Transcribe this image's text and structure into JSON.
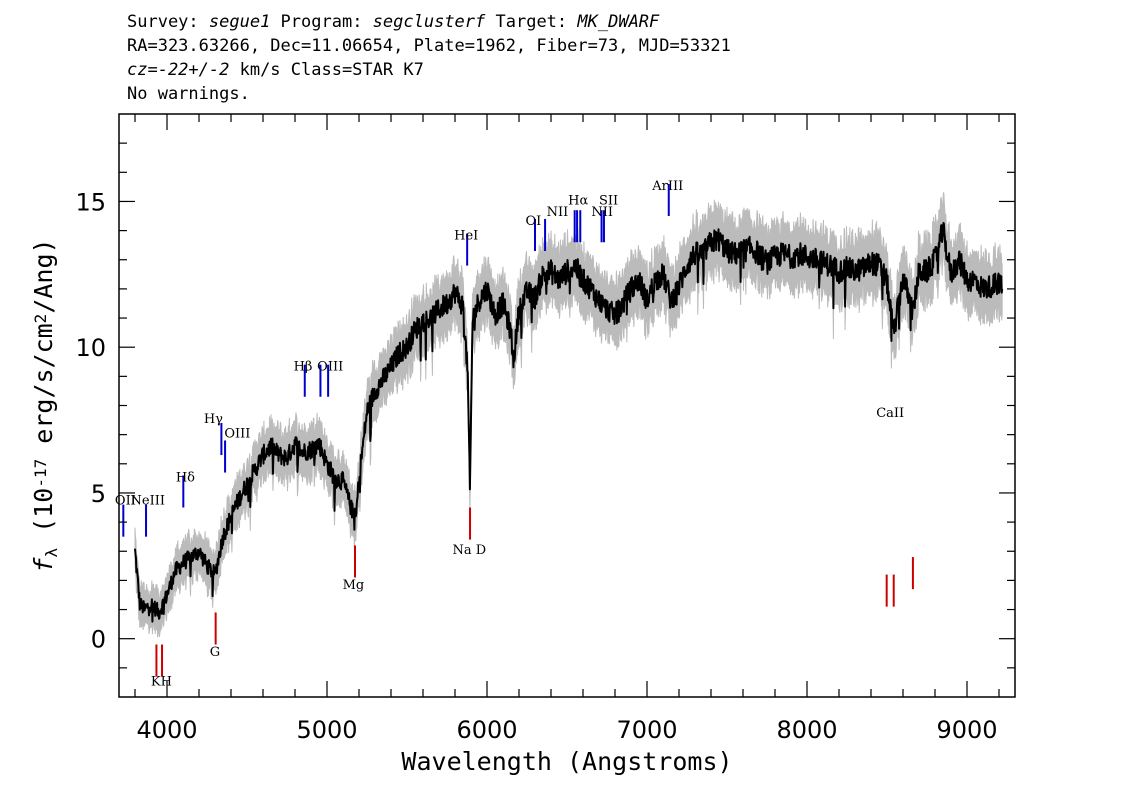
{
  "header": {
    "line1": {
      "survey_label": "Survey: ",
      "survey": "segue1",
      "program_label": " Program: ",
      "program": "segclusterf",
      "target_label": " Target: ",
      "target": "MK_DWARF"
    },
    "line2": "RA=323.63266, Dec=11.06654, Plate=1962, Fiber=73, MJD=53321",
    "line3": {
      "cz": "cz=-22+/-2",
      "rest": " km/s Class=STAR K7"
    },
    "line4": "No warnings."
  },
  "chart_data": {
    "type": "line",
    "xlabel": "Wavelength (Angstroms)",
    "ylabel": "f_λ (10^-17 erg/s/cm^2/Ang)",
    "xlim": [
      3700,
      9300
    ],
    "ylim": [
      -2,
      18
    ],
    "xticks": [
      4000,
      5000,
      6000,
      7000,
      8000,
      9000
    ],
    "yticks": [
      0,
      5,
      10,
      15
    ],
    "series": [
      {
        "color": "#000000",
        "error_color": "#bbbbbb",
        "x": [
          3800,
          3830,
          3860,
          3900,
          3950,
          4000,
          4050,
          4100,
          4150,
          4200,
          4250,
          4300,
          4350,
          4400,
          4450,
          4500,
          4550,
          4600,
          4650,
          4700,
          4750,
          4800,
          4850,
          4900,
          4950,
          5000,
          5050,
          5100,
          5150,
          5180,
          5200,
          5250,
          5300,
          5350,
          5400,
          5450,
          5500,
          5550,
          5600,
          5650,
          5700,
          5750,
          5800,
          5850,
          5880,
          5893,
          5910,
          5950,
          6000,
          6050,
          6100,
          6150,
          6165,
          6200,
          6250,
          6300,
          6350,
          6400,
          6450,
          6500,
          6550,
          6600,
          6650,
          6700,
          6750,
          6800,
          6850,
          6900,
          6950,
          7000,
          7050,
          7100,
          7150,
          7200,
          7250,
          7300,
          7350,
          7400,
          7450,
          7500,
          7550,
          7600,
          7650,
          7700,
          7750,
          7800,
          7850,
          7900,
          7950,
          8000,
          8050,
          8100,
          8150,
          8200,
          8250,
          8300,
          8350,
          8400,
          8450,
          8498,
          8542,
          8600,
          8662,
          8700,
          8750,
          8800,
          8850,
          8900,
          8950,
          9000,
          9050,
          9100,
          9150,
          9200,
          9220
        ],
        "y": [
          3.0,
          1.2,
          1.0,
          1.2,
          0.9,
          1.5,
          2.3,
          2.6,
          2.8,
          3.0,
          2.5,
          2.2,
          3.5,
          4.2,
          4.8,
          5.3,
          5.8,
          6.3,
          6.6,
          6.3,
          6.2,
          6.7,
          6.4,
          6.5,
          6.7,
          6.0,
          5.5,
          5.4,
          4.5,
          4.1,
          5.5,
          7.8,
          8.5,
          8.9,
          9.3,
          9.8,
          10.0,
          10.6,
          10.9,
          11.0,
          11.3,
          11.5,
          11.9,
          11.4,
          9.0,
          5.0,
          11.0,
          11.6,
          12.0,
          11.1,
          11.5,
          10.5,
          9.5,
          11.3,
          11.9,
          11.7,
          12.5,
          12.6,
          12.3,
          12.6,
          12.8,
          12.3,
          12.0,
          11.6,
          11.3,
          11.1,
          11.5,
          12.0,
          12.3,
          11.6,
          12.3,
          12.5,
          11.6,
          12.1,
          12.8,
          13.2,
          13.2,
          13.6,
          13.7,
          13.3,
          13.2,
          13.3,
          13.4,
          13.2,
          12.9,
          13.1,
          13.2,
          13.1,
          13.2,
          13.1,
          13.0,
          12.9,
          12.8,
          12.6,
          12.7,
          12.6,
          12.7,
          12.9,
          12.8,
          12.3,
          10.5,
          12.4,
          11.2,
          12.6,
          12.6,
          13.0,
          14.0,
          12.5,
          13.0,
          12.3,
          12.3,
          12.0,
          12.1,
          12.2,
          12.0
        ]
      }
    ],
    "emission_lines": [
      {
        "label": "OII",
        "x": 3727,
        "y": 3.5
      },
      {
        "label": "NeIII",
        "x": 3869,
        "y": 3.5
      },
      {
        "label": "Hδ",
        "x": 4102,
        "y": 4.5
      },
      {
        "label": "Hγ",
        "x": 4340,
        "y": 6.3
      },
      {
        "label": "OIII",
        "x": 4363,
        "y": 5.7
      },
      {
        "label": "Hβ",
        "x": 4861,
        "y": 8.3
      },
      {
        "label": "OIII",
        "x": 4959,
        "y": 8.3
      },
      {
        "label": "OIII",
        "x": 5007,
        "y": 8.3
      },
      {
        "label": "HeI",
        "x": 5876,
        "y": 12.8
      },
      {
        "label": "OI",
        "x": 6300,
        "y": 13.3
      },
      {
        "label": "OI",
        "x": 6363,
        "y": 13.3
      },
      {
        "label": "NII",
        "x": 6548,
        "y": 13.6
      },
      {
        "label": "Hα",
        "x": 6563,
        "y": 13.6
      },
      {
        "label": "NII",
        "x": 6583,
        "y": 13.6
      },
      {
        "label": "SII",
        "x": 6716,
        "y": 13.6
      },
      {
        "label": "SII",
        "x": 6731,
        "y": 13.6
      },
      {
        "label": "ArIII",
        "x": 7136,
        "y": 14.5
      }
    ],
    "absorption_lines": [
      {
        "label": "K",
        "x": 3934,
        "y": -0.2
      },
      {
        "label": "H",
        "x": 3969,
        "y": -0.2
      },
      {
        "label": "G",
        "x": 4304,
        "y": 0.9
      },
      {
        "label": "Mg",
        "x": 5175,
        "y": 3.2
      },
      {
        "label": "Na D",
        "x": 5894,
        "y": 4.5
      },
      {
        "label": "CaII",
        "x": 8498,
        "y": 2.2
      },
      {
        "label": "CaII",
        "x": 8542,
        "y": 2.2
      },
      {
        "label": "CaII",
        "x": 8662,
        "y": 2.8
      }
    ],
    "line_labels": [
      {
        "text": "OII",
        "x": 3740,
        "y": 4.6
      },
      {
        "text": "NeIII",
        "x": 3880,
        "y": 4.6
      },
      {
        "text": "Hδ",
        "x": 4115,
        "y": 5.4
      },
      {
        "text": "Hγ",
        "x": 4290,
        "y": 7.4
      },
      {
        "text": "OIII",
        "x": 4440,
        "y": 6.9
      },
      {
        "text": "Hβ",
        "x": 4850,
        "y": 9.2
      },
      {
        "text": "OIII",
        "x": 5020,
        "y": 9.2
      },
      {
        "text": "HeI",
        "x": 5870,
        "y": 13.7
      },
      {
        "text": "OI",
        "x": 6290,
        "y": 14.2
      },
      {
        "text": "NII",
        "x": 6440,
        "y": 14.5
      },
      {
        "text": "Hα",
        "x": 6570,
        "y": 14.9
      },
      {
        "text": "NII",
        "x": 6720,
        "y": 14.5
      },
      {
        "text": "SII",
        "x": 6760,
        "y": 14.9
      },
      {
        "text": "ArIII",
        "x": 7130,
        "y": 15.4
      },
      {
        "text": "KH",
        "x": 3965,
        "y": -1.6
      },
      {
        "text": "G",
        "x": 4300,
        "y": -0.6
      },
      {
        "text": "Mg",
        "x": 5165,
        "y": 1.7
      },
      {
        "text": "Na D",
        "x": 5890,
        "y": 2.9
      },
      {
        "text": "CaII",
        "x": 8520,
        "y": 7.6
      }
    ]
  }
}
